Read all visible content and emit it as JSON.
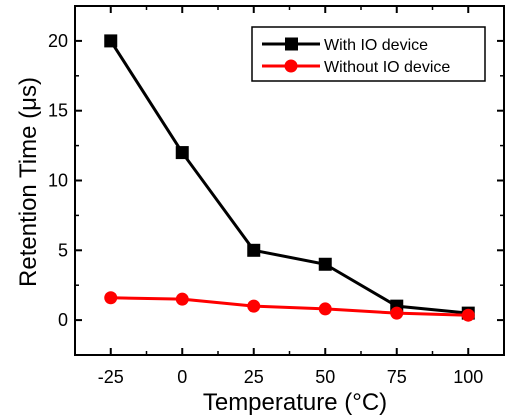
{
  "chart_data": {
    "type": "line",
    "xlabel": "Temperature (°C)",
    "ylabel": "Retention Time (μs)",
    "x": [
      -25,
      0,
      25,
      50,
      75,
      100
    ],
    "xlim": [
      -37.5,
      112.5
    ],
    "ylim": [
      -2.5,
      22.5
    ],
    "x_ticks": [
      -25,
      0,
      25,
      50,
      75,
      100
    ],
    "x_tick_labels": [
      "-25",
      "0",
      "25",
      "50",
      "75",
      "100"
    ],
    "y_ticks": [
      0,
      5,
      10,
      15,
      20
    ],
    "y_tick_labels": [
      "0",
      "5",
      "10",
      "15",
      "20"
    ],
    "grid": false,
    "legend_position": "top-right",
    "series": [
      {
        "name": "With IO device",
        "values": [
          20,
          12,
          5,
          4,
          1,
          0.5
        ],
        "color": "#000000",
        "marker": "square"
      },
      {
        "name": "Without IO device",
        "values": [
          1.6,
          1.5,
          1.0,
          0.8,
          0.5,
          0.35
        ],
        "color": "#ff0000",
        "marker": "circle"
      }
    ]
  }
}
